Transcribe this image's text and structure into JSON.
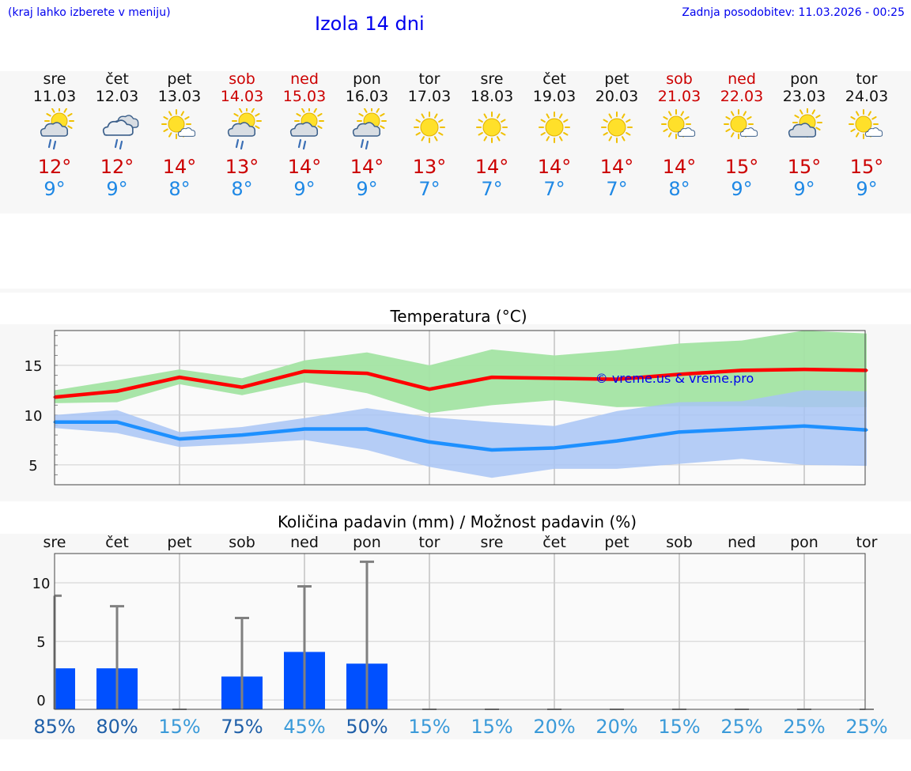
{
  "header": {
    "menu_hint": "(kraj lahko izberete v meniju)",
    "title": "Izola 14 dni",
    "last_update": "Zadnja posodobitev: 11.03.2026 - 00:25"
  },
  "days": [
    {
      "name": "sre",
      "date": "11.03",
      "max": "12°",
      "min": "9°",
      "weekend": false,
      "icon": "partly-sunny-rain-icon"
    },
    {
      "name": "čet",
      "date": "12.03",
      "max": "12°",
      "min": "9°",
      "weekend": false,
      "icon": "cloudy-rain-icon"
    },
    {
      "name": "pet",
      "date": "13.03",
      "max": "14°",
      "min": "8°",
      "weekend": false,
      "icon": "sun-small-cloud-icon"
    },
    {
      "name": "sob",
      "date": "14.03",
      "max": "13°",
      "min": "8°",
      "weekend": true,
      "icon": "partly-sunny-rain-icon"
    },
    {
      "name": "ned",
      "date": "15.03",
      "max": "14°",
      "min": "9°",
      "weekend": true,
      "icon": "partly-sunny-rain-icon"
    },
    {
      "name": "pon",
      "date": "16.03",
      "max": "14°",
      "min": "9°",
      "weekend": false,
      "icon": "partly-sunny-rain-icon"
    },
    {
      "name": "tor",
      "date": "17.03",
      "max": "13°",
      "min": "7°",
      "weekend": false,
      "icon": "sun-icon"
    },
    {
      "name": "sre",
      "date": "18.03",
      "max": "14°",
      "min": "7°",
      "weekend": false,
      "icon": "sun-icon"
    },
    {
      "name": "čet",
      "date": "19.03",
      "max": "14°",
      "min": "7°",
      "weekend": false,
      "icon": "sun-icon"
    },
    {
      "name": "pet",
      "date": "20.03",
      "max": "14°",
      "min": "7°",
      "weekend": false,
      "icon": "sun-icon"
    },
    {
      "name": "sob",
      "date": "21.03",
      "max": "14°",
      "min": "8°",
      "weekend": true,
      "icon": "sun-small-cloud-icon"
    },
    {
      "name": "ned",
      "date": "22.03",
      "max": "15°",
      "min": "9°",
      "weekend": true,
      "icon": "sun-small-cloud-icon"
    },
    {
      "name": "pon",
      "date": "23.03",
      "max": "15°",
      "min": "9°",
      "weekend": false,
      "icon": "partly-cloudy-icon"
    },
    {
      "name": "tor",
      "date": "24.03",
      "max": "15°",
      "min": "9°",
      "weekend": false,
      "icon": "sun-small-cloud-icon"
    }
  ],
  "chart_data": [
    {
      "type": "line",
      "title": "Temperatura (°C)",
      "ylim": [
        3,
        18.5
      ],
      "yticks": [
        "5",
        "10",
        "15"
      ],
      "watermark": "© vreme.us & vreme.pro",
      "x": [
        0,
        1,
        2,
        3,
        4,
        5,
        6,
        7,
        8,
        9,
        10,
        11,
        12,
        13
      ],
      "series": [
        {
          "name": "max",
          "color": "#ff0000",
          "values": [
            11.8,
            12.4,
            13.8,
            12.8,
            14.4,
            14.2,
            12.6,
            13.8,
            13.7,
            13.6,
            14.1,
            14.5,
            14.6,
            14.5
          ],
          "band_low": [
            11.2,
            11.3,
            13.1,
            12.0,
            13.3,
            12.2,
            10.2,
            11.0,
            11.5,
            10.8,
            10.9,
            10.9,
            10.8,
            10.8
          ],
          "band_high": [
            12.5,
            13.5,
            14.6,
            13.7,
            15.5,
            16.3,
            15.0,
            16.6,
            16.0,
            16.5,
            17.2,
            17.5,
            18.5,
            18.2
          ],
          "band_color": "#a3e4a3"
        },
        {
          "name": "min",
          "color": "#1e90ff",
          "values": [
            9.3,
            9.3,
            7.6,
            8.0,
            8.6,
            8.6,
            7.3,
            6.5,
            6.7,
            7.4,
            8.3,
            8.6,
            8.9,
            8.5
          ],
          "band_low": [
            8.7,
            8.2,
            6.8,
            7.1,
            7.5,
            6.5,
            4.8,
            3.7,
            4.6,
            4.6,
            5.1,
            5.6,
            5.0,
            4.9
          ],
          "band_high": [
            10.0,
            10.5,
            8.3,
            8.8,
            9.7,
            10.7,
            9.8,
            9.3,
            8.9,
            10.4,
            11.3,
            11.4,
            12.5,
            12.4
          ],
          "band_color": "#a8c4f5"
        }
      ]
    },
    {
      "type": "bar",
      "title": "Količina padavin (mm) / Možnost padavin (%)",
      "ylim": [
        -0.8,
        12.5
      ],
      "yticks": [
        "0",
        "5",
        "10"
      ],
      "categories": [
        "sre",
        "čet",
        "pet",
        "sob",
        "ned",
        "pon",
        "tor",
        "sre",
        "čet",
        "pet",
        "sob",
        "ned",
        "pon",
        "tor"
      ],
      "values": [
        2.7,
        2.7,
        0,
        2.0,
        4.1,
        3.1,
        0,
        0,
        0,
        0,
        0,
        0,
        0,
        0
      ],
      "max_values": [
        8.9,
        8.0,
        0,
        7.0,
        9.7,
        11.8,
        0,
        0,
        0,
        0,
        0,
        0,
        0,
        0
      ],
      "probabilities": [
        "85%",
        "80%",
        "15%",
        "75%",
        "45%",
        "50%",
        "15%",
        "15%",
        "20%",
        "20%",
        "15%",
        "25%",
        "25%",
        "25%"
      ],
      "bar_color": "#0050ff",
      "whisker_color": "#808080"
    }
  ],
  "colors": {
    "link": "#0000ee",
    "weekend": "#cc0000",
    "tmax": "#cc0000",
    "tmin": "#1e88e5",
    "prob_high": "#1f5fa8",
    "prob_low": "#3a9ad9"
  }
}
